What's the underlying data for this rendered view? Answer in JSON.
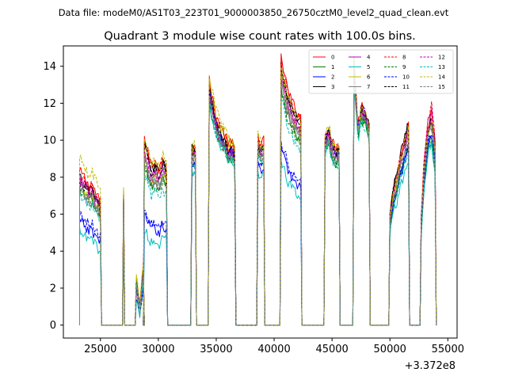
{
  "chart_data": {
    "type": "line",
    "suptitle": "Data file: modeM0/AS1T03_223T01_9000003850_26750cztM0_level2_quad_clean.evt",
    "title": "Quadrant 3 module wise count rates with 100.0s bins.",
    "xlabel": "",
    "ylabel": "",
    "x_offset_label": "+3.372e8",
    "xlim": [
      21800,
      55800
    ],
    "ylim": [
      -0.7,
      15.1
    ],
    "x_ticks": [
      25000,
      30000,
      35000,
      40000,
      45000,
      50000,
      55000
    ],
    "x_tick_labels": [
      "25000",
      "30000",
      "35000",
      "40000",
      "45000",
      "50000",
      "55000"
    ],
    "y_ticks": [
      0,
      2,
      4,
      6,
      8,
      10,
      12,
      14
    ],
    "y_tick_labels": [
      "0",
      "2",
      "4",
      "6",
      "8",
      "10",
      "12",
      "14"
    ],
    "segments": [
      {
        "start": 23200,
        "end": 25000,
        "shape": [
          1.0,
          0.98,
          0.95,
          0.9,
          0.93,
          0.88,
          0.84,
          0.8
        ]
      },
      {
        "start": 27000,
        "end": 27000,
        "shape": [
          1.0
        ]
      },
      {
        "start": 28100,
        "end": 28700,
        "shape": [
          0.55,
          0.2,
          0.7
        ]
      },
      {
        "start": 28800,
        "end": 30700,
        "shape": [
          1.0,
          0.92,
          0.85,
          0.88,
          0.83,
          0.9,
          0.86
        ]
      },
      {
        "start": 32900,
        "end": 33200,
        "shape": [
          1.0,
          0.98
        ]
      },
      {
        "start": 34400,
        "end": 36600,
        "shape": [
          1.0,
          0.93,
          0.87,
          0.83,
          0.8,
          0.78,
          0.74,
          0.75,
          0.72
        ]
      },
      {
        "start": 38600,
        "end": 39100,
        "shape": [
          1.0,
          0.95,
          0.97
        ]
      },
      {
        "start": 40600,
        "end": 42300,
        "shape": [
          1.0,
          0.95,
          0.88,
          0.85,
          0.82,
          0.8,
          0.78
        ]
      },
      {
        "start": 44400,
        "end": 45600,
        "shape": [
          0.95,
          1.0,
          0.92,
          0.88,
          0.9
        ]
      },
      {
        "start": 46900,
        "end": 48200,
        "shape": [
          1.0,
          0.75,
          0.82,
          0.8,
          0.75
        ]
      },
      {
        "start": 50000,
        "end": 51600,
        "shape": [
          0.55,
          0.68,
          0.75,
          0.85,
          0.92,
          1.0
        ]
      },
      {
        "start": 52700,
        "end": 53900,
        "shape": [
          0.5,
          0.8,
          0.95,
          1.0,
          0.85
        ]
      }
    ],
    "series": [
      {
        "name": "0",
        "color": "#ff0000",
        "dash": "solid",
        "levels": [
          8.3,
          7.3,
          4.6,
          10.1,
          9.8,
          13.2,
          10.3,
          14.4,
          10.8,
          14.5,
          10.8,
          11.4
        ]
      },
      {
        "name": "1",
        "color": "#008000",
        "dash": "solid",
        "levels": [
          7.4,
          6.6,
          4.0,
          8.8,
          8.8,
          12.3,
          9.4,
          12.8,
          10.0,
          13.6,
          9.8,
          10.1
        ]
      },
      {
        "name": "2",
        "color": "#0000ff",
        "dash": "solid",
        "levels": [
          5.6,
          5.0,
          3.0,
          6.0,
          8.6,
          12.5,
          8.7,
          9.5,
          10.4,
          14.1,
          9.6,
          10.2
        ]
      },
      {
        "name": "3",
        "color": "#000000",
        "dash": "solid",
        "levels": [
          8.0,
          7.2,
          4.4,
          9.8,
          9.6,
          12.8,
          10.0,
          14.0,
          10.6,
          14.3,
          11.0,
          11.2
        ]
      },
      {
        "name": "4",
        "color": "#bf00bf",
        "dash": "solid",
        "levels": [
          7.9,
          7.0,
          4.2,
          9.5,
          9.4,
          12.5,
          9.8,
          13.5,
          10.2,
          14.0,
          10.6,
          11.0
        ]
      },
      {
        "name": "5",
        "color": "#00bfbf",
        "dash": "solid",
        "levels": [
          5.0,
          4.6,
          2.6,
          5.2,
          8.3,
          12.0,
          8.3,
          8.8,
          9.8,
          13.8,
          9.0,
          9.8
        ]
      },
      {
        "name": "6",
        "color": "#bfbf00",
        "dash": "solid",
        "levels": [
          7.6,
          6.8,
          4.1,
          9.2,
          9.3,
          13.0,
          9.8,
          13.4,
          10.4,
          14.2,
          10.4,
          11.0
        ]
      },
      {
        "name": "7",
        "color": "#808080",
        "dash": "solid",
        "levels": [
          7.5,
          6.9,
          4.0,
          9.0,
          9.2,
          12.2,
          9.6,
          13.2,
          10.1,
          13.9,
          10.2,
          10.8
        ]
      },
      {
        "name": "8",
        "color": "#ff0000",
        "dash": "dashed",
        "levels": [
          8.1,
          7.1,
          4.5,
          10.0,
          9.7,
          13.0,
          10.2,
          14.2,
          10.7,
          14.4,
          10.9,
          11.9
        ]
      },
      {
        "name": "9",
        "color": "#008000",
        "dash": "dashed",
        "levels": [
          7.2,
          6.5,
          3.9,
          8.6,
          8.7,
          12.1,
          9.3,
          12.6,
          9.9,
          13.5,
          9.7,
          10.0
        ]
      },
      {
        "name": "10",
        "color": "#0000ff",
        "dash": "dashed",
        "levels": [
          6.0,
          5.2,
          3.2,
          6.3,
          8.8,
          12.7,
          8.9,
          9.9,
          10.5,
          14.2,
          9.8,
          10.4
        ]
      },
      {
        "name": "11",
        "color": "#000000",
        "dash": "dashed",
        "levels": [
          7.8,
          7.0,
          4.3,
          9.7,
          9.5,
          12.6,
          9.9,
          13.8,
          10.5,
          14.3,
          10.8,
          11.2
        ]
      },
      {
        "name": "12",
        "color": "#bf00bf",
        "dash": "dashed",
        "levels": [
          7.7,
          6.9,
          4.2,
          9.4,
          9.3,
          12.4,
          9.7,
          13.4,
          10.3,
          14.0,
          10.5,
          11.6
        ]
      },
      {
        "name": "13",
        "color": "#00bfbf",
        "dash": "dashed",
        "levels": [
          7.0,
          6.4,
          3.8,
          8.2,
          8.6,
          12.0,
          9.1,
          12.2,
          9.8,
          13.4,
          9.5,
          9.9
        ]
      },
      {
        "name": "14",
        "color": "#bfbf00",
        "dash": "dashed",
        "levels": [
          9.0,
          7.6,
          4.8,
          10.2,
          9.9,
          13.5,
          10.3,
          14.0,
          10.9,
          14.4,
          10.7,
          11.2
        ]
      },
      {
        "name": "15",
        "color": "#808080",
        "dash": "dashed",
        "levels": [
          7.4,
          6.7,
          4.0,
          8.9,
          9.1,
          12.3,
          9.5,
          13.0,
          10.1,
          13.8,
          10.1,
          10.7
        ]
      }
    ]
  }
}
